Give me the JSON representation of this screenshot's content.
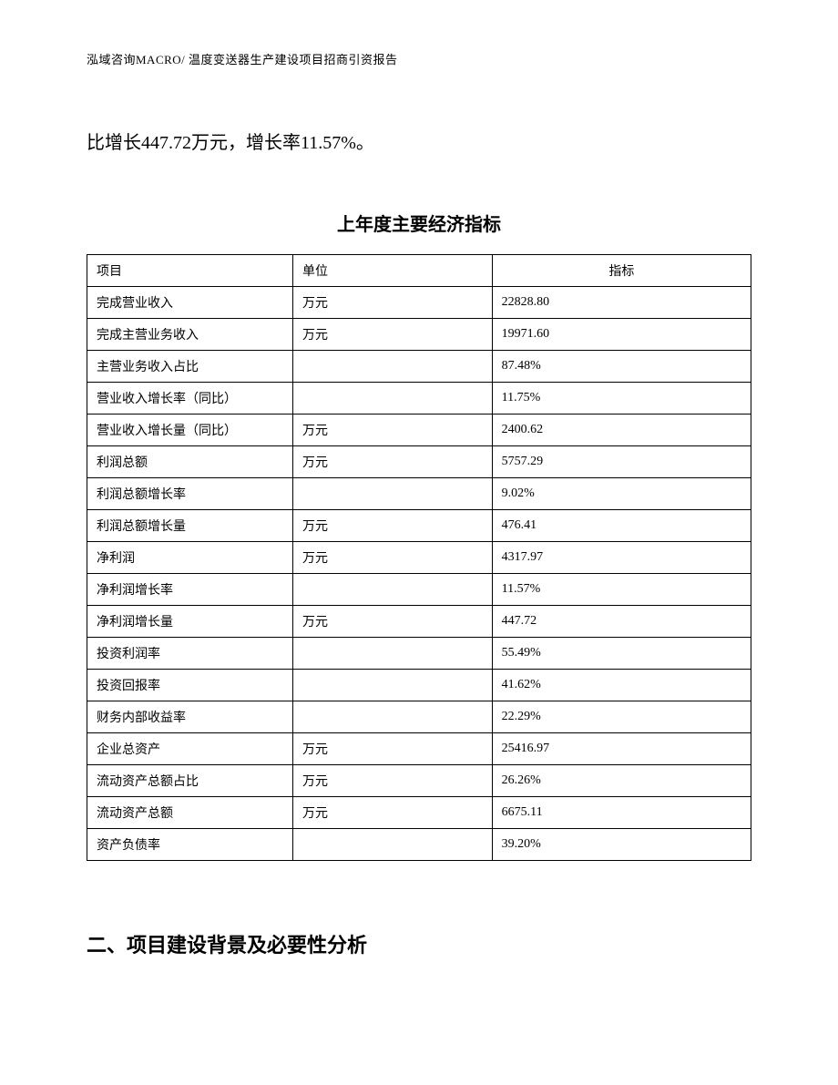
{
  "header": "泓域咨询MACRO/ 温度变送器生产建设项目招商引资报告",
  "body_text": "比增长447.72万元，增长率11.57%。",
  "table_title": "上年度主要经济指标",
  "table": {
    "columns": [
      "项目",
      "单位",
      "指标"
    ],
    "rows": [
      [
        "完成营业收入",
        "万元",
        "22828.80"
      ],
      [
        "完成主营业务收入",
        "万元",
        "19971.60"
      ],
      [
        "主营业务收入占比",
        "",
        "87.48%"
      ],
      [
        "营业收入增长率（同比）",
        "",
        "11.75%"
      ],
      [
        "营业收入增长量（同比）",
        "万元",
        "2400.62"
      ],
      [
        "利润总额",
        "万元",
        "5757.29"
      ],
      [
        "利润总额增长率",
        "",
        "9.02%"
      ],
      [
        "利润总额增长量",
        "万元",
        "476.41"
      ],
      [
        "净利润",
        "万元",
        "4317.97"
      ],
      [
        "净利润增长率",
        "",
        "11.57%"
      ],
      [
        "净利润增长量",
        "万元",
        "447.72"
      ],
      [
        "投资利润率",
        "",
        "55.49%"
      ],
      [
        "投资回报率",
        "",
        "41.62%"
      ],
      [
        "财务内部收益率",
        "",
        "22.29%"
      ],
      [
        "企业总资产",
        "万元",
        "25416.97"
      ],
      [
        "流动资产总额占比",
        "万元",
        "26.26%"
      ],
      [
        "流动资产总额",
        "万元",
        "6675.11"
      ],
      [
        "资产负债率",
        "",
        "39.20%"
      ]
    ]
  },
  "section_heading": "二、项目建设背景及必要性分析"
}
